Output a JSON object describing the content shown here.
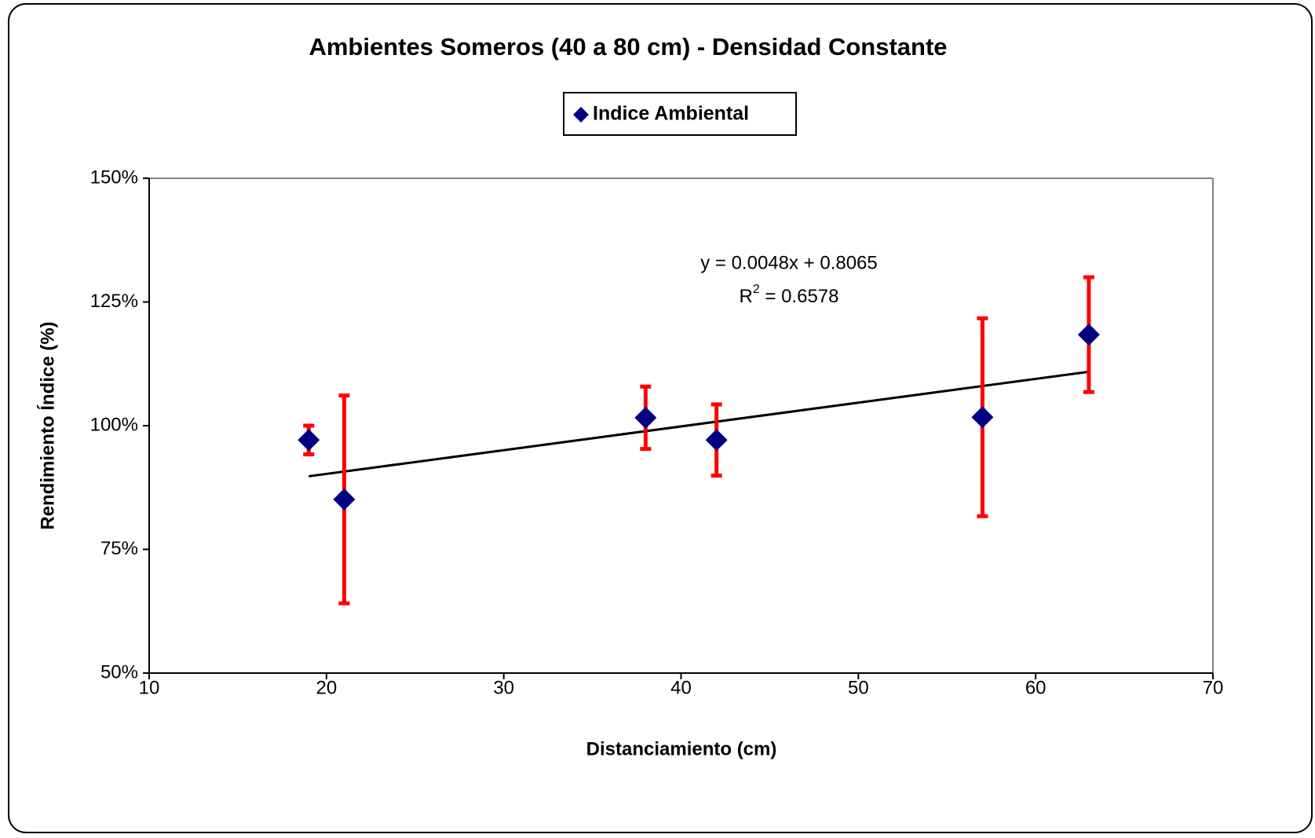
{
  "chart_data": {
    "type": "scatter",
    "title": "Ambientes Someros (40 a 80 cm) - Densidad Constante",
    "x_label": "Distanciamiento (cm)",
    "y_label": "Rendimiento Índice (%)",
    "legend_position": "top",
    "series": [
      {
        "name": "Indice Ambiental",
        "color": "#000080",
        "x": [
          19,
          21,
          38,
          42,
          57,
          63
        ],
        "values": [
          97.1,
          85.1,
          101.6,
          97.1,
          101.7,
          118.4
        ],
        "errors": [
          2.9,
          21,
          6.3,
          7.2,
          20,
          11.6
        ],
        "error_color": "#ff0000"
      }
    ],
    "trendline": {
      "color": "#000000",
      "x": [
        19,
        63
      ],
      "values": [
        89.77,
        110.89
      ],
      "equation": "y = 0.0048x + 0.8065",
      "r2_base": "R",
      "r2_sup": "2",
      "r2_rest": " = 0.6578"
    },
    "xlim": [
      10,
      70
    ],
    "xticks": [
      10,
      20,
      30,
      40,
      50,
      60,
      70
    ],
    "ylim": [
      50,
      150
    ],
    "yticks": [
      {
        "value": 50,
        "label": "50%"
      },
      {
        "value": 75,
        "label": "75%"
      },
      {
        "value": 100,
        "label": "100%"
      },
      {
        "value": 125,
        "label": "125%"
      },
      {
        "value": 150,
        "label": "150%"
      }
    ],
    "grid": false
  }
}
